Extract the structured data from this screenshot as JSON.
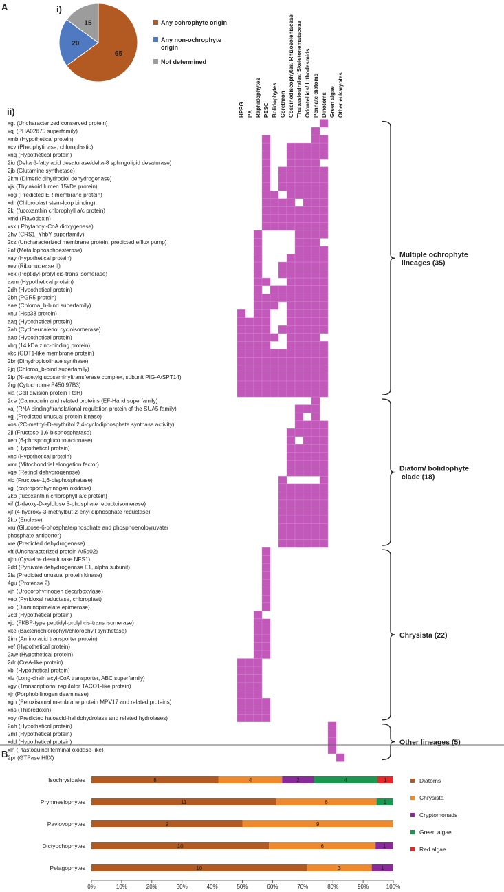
{
  "panel_labels": {
    "a": "A",
    "a_i": "i)",
    "a_ii": "ii)",
    "b": "B"
  },
  "chart_data": [
    {
      "type": "pie",
      "slices": [
        {
          "label": "Any ochrophyte origin",
          "value": 65,
          "color": "#b35a22"
        },
        {
          "label": "Any non-ochrophyte origin",
          "value": 20,
          "color": "#4f79c0"
        },
        {
          "label": "Not determined",
          "value": 15,
          "color": "#9c9c9c"
        }
      ]
    },
    {
      "type": "heatmap",
      "columns": [
        "HPPG",
        "PX",
        "Raphidophytes",
        "PESC",
        "Bolidophytes",
        "Corethron",
        "Coscinodiscophytes/ Rhizosoleniaceae",
        "Thalassiosirales/ Skeletonemataceae",
        "Odontellids/ Lithodesmids",
        "Pennate diatoms",
        "Dinotoms",
        "Green algae",
        "Other eukaryotes"
      ],
      "cell_color": "#c158ba",
      "rows": [
        {
          "label": "xgt (Uncharacterized conserved protein)",
          "present": [
            10
          ]
        },
        {
          "label": "xqj (PHA02675 superfamily)",
          "present": [
            9
          ]
        },
        {
          "label": "xmb (Hypothetical protein)",
          "present": [
            3,
            9,
            10
          ]
        },
        {
          "label": "xcv (Pheophytinase, chloroplastic)",
          "present": [
            3,
            6,
            7,
            8,
            9,
            10
          ]
        },
        {
          "label": "xnq (Hypothetical protein)",
          "present": [
            3,
            6,
            7,
            8,
            9,
            10
          ]
        },
        {
          "label": "2iu (Delta 6-fatty acid desaturase/delta-8 sphingolipid desaturase)",
          "present": [
            3,
            6,
            7,
            8,
            9
          ]
        },
        {
          "label": "2jb (Glutamine synthetase)",
          "present": [
            3,
            5,
            6,
            7,
            8,
            9,
            10
          ]
        },
        {
          "label": "2km (Dimeric dihydrodiol dehydrogenase)",
          "present": [
            3,
            5,
            6,
            7,
            8,
            9,
            10
          ]
        },
        {
          "label": "xjk (Thylakoid lumen 15kDa protein)",
          "present": [
            3,
            5,
            6,
            7,
            8,
            9,
            10
          ]
        },
        {
          "label": "xog (Predicted ER membrane protein)",
          "present": [
            3,
            4,
            6,
            7,
            8,
            9,
            10
          ]
        },
        {
          "label": "xdr (Chloroplast stem-loop binding)",
          "present": [
            3,
            4,
            5,
            6,
            8,
            9,
            10
          ]
        },
        {
          "label": "2ki (fucoxanthin chlorophyll a/c protein)",
          "present": [
            3,
            4,
            5,
            6,
            7,
            8,
            9,
            10
          ]
        },
        {
          "label": "xmd (Flavodoxin)",
          "present": [
            3,
            4,
            5,
            6,
            7,
            8,
            9,
            10
          ]
        },
        {
          "label": "xsx ( Phytanoyl-CoA dioxygenase)",
          "present": [
            3,
            4,
            5,
            6,
            7,
            8,
            9,
            10
          ]
        },
        {
          "label": "2hy (CRS1_YhbY superfamily)",
          "present": [
            2,
            7,
            8,
            9,
            10
          ]
        },
        {
          "label": "2cz (Uncharacterized membrane protein, predicted efflux pump)",
          "present": [
            2,
            7,
            8,
            9
          ]
        },
        {
          "label": "2af (Metallophosphoesterase)",
          "present": [
            2,
            7,
            8,
            9,
            10
          ]
        },
        {
          "label": "xay (Hypothetical protein)",
          "present": [
            2,
            6,
            7,
            8,
            9,
            10
          ]
        },
        {
          "label": "xev (Ribonuclease II)",
          "present": [
            2,
            5,
            6,
            7,
            8,
            9,
            10
          ]
        },
        {
          "label": "xex (Peptidyl-prolyl cis-trans isomerase)",
          "present": [
            2,
            5,
            6,
            7,
            8,
            9,
            10
          ]
        },
        {
          "label": "aam (Hypothetical protein)",
          "present": [
            2,
            3,
            6,
            7,
            8,
            9,
            10
          ]
        },
        {
          "label": "2dh (Hypothetical protein)",
          "present": [
            2,
            4,
            5,
            6,
            7,
            8,
            9,
            10
          ]
        },
        {
          "label": "2bh (PGR5 protein)",
          "present": [
            2,
            3,
            4,
            5,
            6,
            7,
            8,
            9,
            10
          ]
        },
        {
          "label": "aae (Chloroa_b-bind superfamily)",
          "present": [
            2,
            3,
            4,
            6,
            7,
            8,
            9,
            10
          ]
        },
        {
          "label": "xnu (Hsp33 protein)",
          "present": [
            0,
            2,
            3,
            6,
            7,
            8,
            9,
            10
          ]
        },
        {
          "label": "aaq (Hypothetical protein)",
          "present": [
            0,
            1,
            2,
            3,
            6,
            7,
            8,
            9,
            10
          ]
        },
        {
          "label": "7ah (Cycloeucalenol cycloisomerase)",
          "present": [
            0,
            1,
            2,
            3,
            5,
            6,
            7,
            8,
            9,
            10
          ]
        },
        {
          "label": "aao (Hypothetical protein)",
          "present": [
            0,
            1,
            2,
            3,
            4,
            6,
            7,
            8,
            9
          ]
        },
        {
          "label": "xbq (14 kDa zinc-binding protein)",
          "present": [
            0,
            1,
            2,
            3,
            6,
            7,
            8,
            9,
            10
          ]
        },
        {
          "label": "xkc (GDT1-like membrane protein)",
          "present": [
            0,
            1,
            2,
            3,
            4,
            5,
            6,
            7,
            8,
            9,
            10
          ]
        },
        {
          "label": "2br (Dihydropicolinate synthase)",
          "present": [
            0,
            1,
            2,
            3,
            4,
            5,
            6,
            7,
            8,
            9,
            10
          ]
        },
        {
          "label": "2jq (Chloroa_b-bind superfamily)",
          "present": [
            0,
            1,
            2,
            3,
            4,
            5,
            6,
            7,
            8,
            9,
            10
          ]
        },
        {
          "label": "2ip (N-acetylglucosaminyltransferase complex, subunit PIG-A/SPT14)",
          "present": [
            0,
            1,
            2,
            3,
            4,
            5,
            6,
            7,
            8,
            9,
            10
          ]
        },
        {
          "label": "2rg (Cytochrome P450 97B3)",
          "present": [
            0,
            1,
            2,
            3,
            4,
            5,
            6,
            7,
            8,
            9,
            10
          ]
        },
        {
          "label": "xia (Cell division protein FtsH)",
          "present": [
            0,
            1,
            2,
            3,
            4,
            5,
            6,
            7,
            8,
            9,
            10
          ]
        },
        {
          "label": "2ce (Calmodulin and related proteins (EF-Hand superfamily)",
          "present": [
            9
          ]
        },
        {
          "label": "xaj (RNA binding/translational regulation protein of the SUA5 family)",
          "present": [
            7,
            8,
            9
          ]
        },
        {
          "label": "xgj (Predicted unusual protein kinase)",
          "present": [
            7,
            9
          ]
        },
        {
          "label": "xos (2C-methyl-D-erythritol 2,4-cyclodiphosphate synthase activity)",
          "present": [
            7,
            8,
            9,
            10
          ]
        },
        {
          "label": "2jl (Fructose-1,6-bisphosphatase)",
          "present": [
            6,
            7,
            8,
            9,
            10
          ]
        },
        {
          "label": "xen (6-phosphogluconolactonase)",
          "present": [
            6,
            8,
            9,
            10
          ]
        },
        {
          "label": "xni (Hypothetical protein)",
          "present": [
            6,
            7,
            8,
            9,
            10
          ]
        },
        {
          "label": "xnc (Hypothetical protein)",
          "present": [
            6,
            7,
            8,
            9,
            10
          ]
        },
        {
          "label": "xmr (Mitochondrial elongation factor)",
          "present": [
            6,
            7,
            8,
            9,
            10
          ]
        },
        {
          "label": "xge (Retinol dehydrogenase)",
          "present": [
            6,
            7,
            8,
            9,
            10
          ]
        },
        {
          "label": "xic (Fructose-1,6-bisphosphatase)",
          "present": [
            5,
            10
          ]
        },
        {
          "label": "xgl (coproporphyrinogen oxidase)",
          "present": [
            5,
            6,
            7,
            8,
            9,
            10
          ]
        },
        {
          "label": "2kb (fucoxanthin chlorophyll a/c protein)",
          "present": [
            5,
            6,
            7,
            8,
            9,
            10
          ]
        },
        {
          "label": "xif (1-deoxy-D-xylulose 5-phosphate reductoisomerase)",
          "present": [
            5,
            6,
            7,
            8,
            9,
            10
          ]
        },
        {
          "label": "xjf (4-hydroxy-3-methylbut-2-enyl diphosphate reductase)",
          "present": [
            5,
            6,
            7,
            8,
            9,
            10
          ]
        },
        {
          "label": "2ko (Enolase)",
          "present": [
            5,
            6,
            7,
            8,
            9,
            10
          ]
        },
        {
          "label": "xru (Glucose-6-phosphate/phosphate and phosphoenolpyruvate/\nphosphate antiporter)",
          "present": [
            5,
            6,
            7,
            8,
            9,
            10
          ]
        },
        {
          "label": "xre (Predicted dehydrogenase)",
          "present": [
            5,
            6,
            7,
            8,
            9,
            10
          ]
        },
        {
          "label": "xft (Uncharacterized protein At5g02)",
          "present": [
            3
          ]
        },
        {
          "label": "xjm (Cysteine desulfurase NFS1)",
          "present": [
            3
          ]
        },
        {
          "label": "2dd (Pyruvate dehydrogenase E1, alpha subunit)",
          "present": [
            3
          ]
        },
        {
          "label": "2la (Predicted unusual protein kinase)",
          "present": [
            3
          ]
        },
        {
          "label": "4gu (Protease 2)",
          "present": [
            3
          ]
        },
        {
          "label": "xjh (Uroporphyrinogen decarboxylase)",
          "present": [
            3
          ]
        },
        {
          "label": "xep (Pyridoxal reductase, chloroplast)",
          "present": [
            3
          ]
        },
        {
          "label": "xoi (Diaminopimelate epimerase)",
          "present": [
            3
          ]
        },
        {
          "label": "2cd (Hypothetical protein)",
          "present": [
            2
          ]
        },
        {
          "label": "xjq (FKBP-type peptidyl-prolyl cis-trans isomerase)",
          "present": [
            2,
            3
          ]
        },
        {
          "label": "xke (Bacteriochlorophyll/chlorophyll synthetase)",
          "present": [
            2,
            3
          ]
        },
        {
          "label": "2im (Amino acid transporter protein)",
          "present": [
            2,
            3
          ]
        },
        {
          "label": "xef (Hypothetical protein)",
          "present": [
            2,
            3
          ]
        },
        {
          "label": "2aw (Hypothetical protein)",
          "present": [
            2,
            3
          ]
        },
        {
          "label": "2dr (CreA-like protein)",
          "present": [
            0,
            1,
            2
          ]
        },
        {
          "label": "xbj (Hypothetical protein)",
          "present": [
            0,
            1,
            2
          ]
        },
        {
          "label": "xlv (Long-chain acyl-CoA transporter, ABC superfamily)",
          "present": [
            0,
            1,
            2
          ]
        },
        {
          "label": "xgy (Transcriptional regulator TACO1-like protein)",
          "present": [
            0,
            1,
            2
          ]
        },
        {
          "label": "xjr (Porphobilinogen deaminase)",
          "present": [
            0,
            1,
            2
          ]
        },
        {
          "label": "xgn (Peroxisomal membrane protein MPV17 and related proteins)",
          "present": [
            0,
            1,
            2,
            3
          ]
        },
        {
          "label": "xns (Thioredoxin)",
          "present": [
            0,
            1,
            2,
            3
          ]
        },
        {
          "label": "xoy (Predicted haloacid-halidohydrolase and related hydrolases)",
          "present": [
            0,
            1,
            2,
            3
          ]
        },
        {
          "label": "2ah (Hypothetical protein)",
          "present": [
            11
          ]
        },
        {
          "label": "2ml (Hypothetical protein)",
          "present": [
            11
          ]
        },
        {
          "label": "xdd (Hypothetical protein)",
          "present": [
            11
          ]
        },
        {
          "label": "xln (Plastoquinol terminal oxidase-like)",
          "present": [
            11
          ]
        },
        {
          "label": "2pr (GTPase HflX)",
          "present": [
            12
          ]
        }
      ],
      "groups": [
        {
          "label": "Multiple ochrophyte lineages (35)",
          "first_row": 0,
          "last_row": 34
        },
        {
          "label": "Diatom/ bolidophyte clade (18)",
          "first_row": 35,
          "last_row": 52
        },
        {
          "label": "Chrysista (22)",
          "first_row": 53,
          "last_row": 74
        },
        {
          "label": "Other lineages (5)",
          "first_row": 75,
          "last_row": 79
        }
      ]
    },
    {
      "type": "bar",
      "orientation": "horizontal",
      "stacked": "percent",
      "categories": [
        "Isochrysidales",
        "Prymnesiophytes",
        "Pavlovophytes",
        "Dictyochophytes",
        "Pelagophytes"
      ],
      "series": [
        {
          "name": "Diatoms",
          "color": "#b35a22",
          "values": [
            8,
            11,
            9,
            10,
            10
          ]
        },
        {
          "name": "Chrysista",
          "color": "#ee8a2c",
          "values": [
            4,
            6,
            9,
            6,
            3
          ]
        },
        {
          "name": "Cryptomonads",
          "color": "#8a2a9a",
          "values": [
            2,
            0,
            0,
            1,
            1
          ]
        },
        {
          "name": "Green algae",
          "color": "#1a9850",
          "values": [
            4,
            1,
            0,
            0,
            0
          ]
        },
        {
          "name": "Red algae",
          "color": "#e8262a",
          "values": [
            1,
            0,
            0,
            0,
            0
          ]
        }
      ],
      "xticks": [
        "0%",
        "10%",
        "20%",
        "30%",
        "40%",
        "50%",
        "60%",
        "70%",
        "80%",
        "90%",
        "100%"
      ],
      "xlim": [
        0,
        100
      ],
      "legend_position": "right"
    }
  ]
}
